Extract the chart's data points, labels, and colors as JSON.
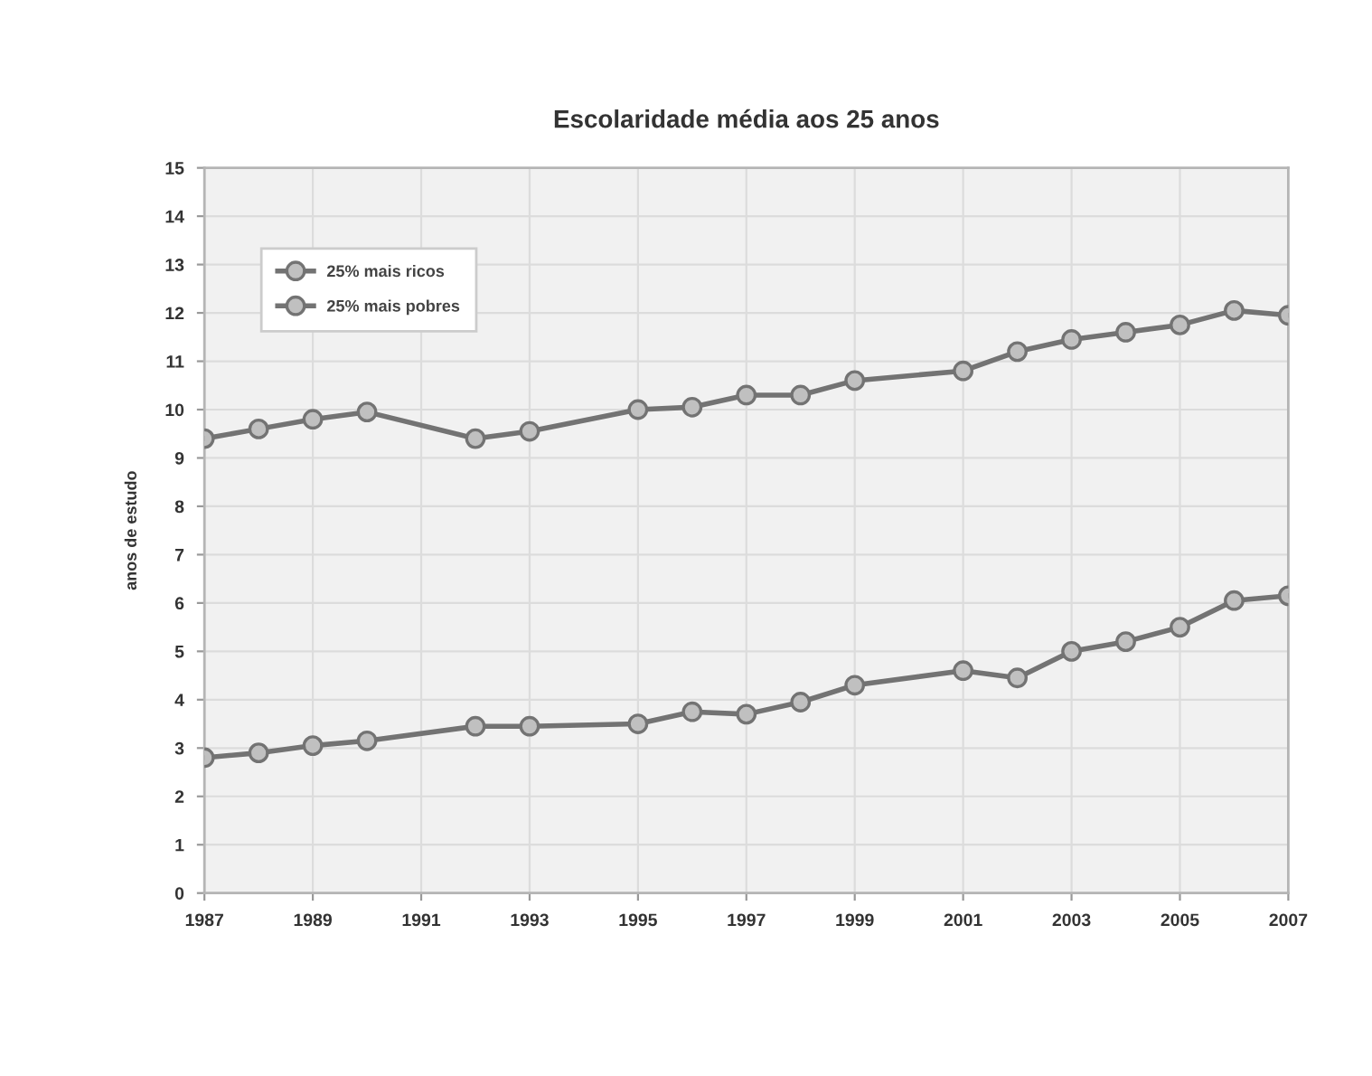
{
  "chart_data": {
    "type": "line",
    "title": "Escolaridade média aos 25 anos",
    "ylabel": "anos de estudo",
    "x": [
      1987,
      1988,
      1989,
      1990,
      1992,
      1993,
      1995,
      1996,
      1997,
      1998,
      1999,
      2001,
      2002,
      2003,
      2004,
      2005,
      2006,
      2007
    ],
    "series": [
      {
        "name": "25% mais ricos",
        "color": "#737373",
        "values": [
          9.4,
          9.6,
          9.8,
          9.95,
          9.4,
          9.55,
          10.0,
          10.05,
          10.3,
          10.3,
          10.6,
          10.8,
          11.2,
          11.45,
          11.6,
          11.75,
          12.05,
          11.95
        ]
      },
      {
        "name": "25% mais pobres",
        "color": "#737373",
        "values": [
          2.8,
          2.9,
          3.05,
          3.15,
          3.45,
          3.45,
          3.5,
          3.75,
          3.7,
          3.95,
          4.3,
          4.6,
          4.45,
          5.0,
          5.2,
          5.5,
          6.05,
          6.15
        ]
      }
    ],
    "xlim": [
      1987,
      2007
    ],
    "xticks": [
      1987,
      1989,
      1991,
      1993,
      1995,
      1997,
      1999,
      2001,
      2003,
      2005,
      2007
    ],
    "ylim": [
      0,
      15
    ],
    "yticks": [
      0,
      1,
      2,
      3,
      4,
      5,
      6,
      7,
      8,
      9,
      10,
      11,
      12,
      13,
      14,
      15
    ],
    "grid": true,
    "legend": "top left",
    "marker": "circle",
    "line_style": "solid"
  }
}
